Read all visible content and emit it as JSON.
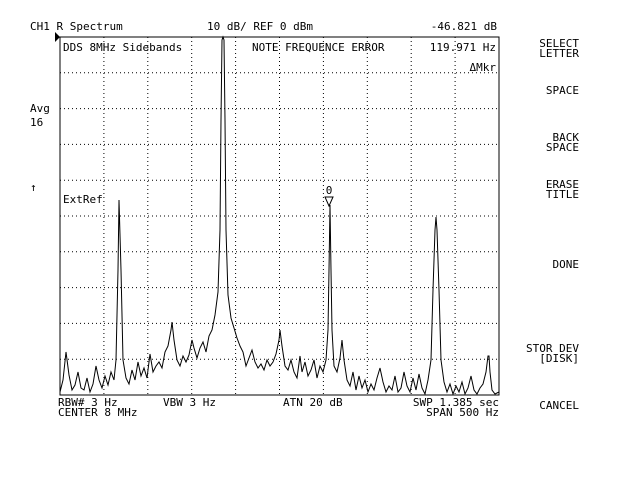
{
  "header": {
    "channel": "CH1 R  Spectrum",
    "scale": "10 dB/ REF 0 dBm",
    "readout": "-46.821 dB"
  },
  "screen": {
    "title": "DDS 8MHz  Sidebands",
    "note": "NOTE FREQUENCE ERROR",
    "note_value": "119.971 Hz",
    "marker_mode": "ΔMkr",
    "ext_ref": "ExtRef",
    "marker_label": "0"
  },
  "left": {
    "avg_label": "Avg",
    "avg_value": "16",
    "arrow": "↑"
  },
  "footer": {
    "rbw": "RBW# 3 Hz",
    "vbw": "VBW 3 Hz",
    "atn": "ATN  20 dB",
    "swp": "SWP  1.385 sec",
    "center": "CENTER  8 MHz",
    "span": "SPAN  500 Hz"
  },
  "softkeys": [
    [
      "SELECT",
      "LETTER"
    ],
    [
      "SPACE"
    ],
    [
      "BACK",
      "SPACE"
    ],
    [
      "ERASE",
      "TITLE"
    ],
    [
      "DONE"
    ],
    [
      "STOR DEV",
      "[DISK]"
    ],
    [
      "CANCEL"
    ]
  ]
}
